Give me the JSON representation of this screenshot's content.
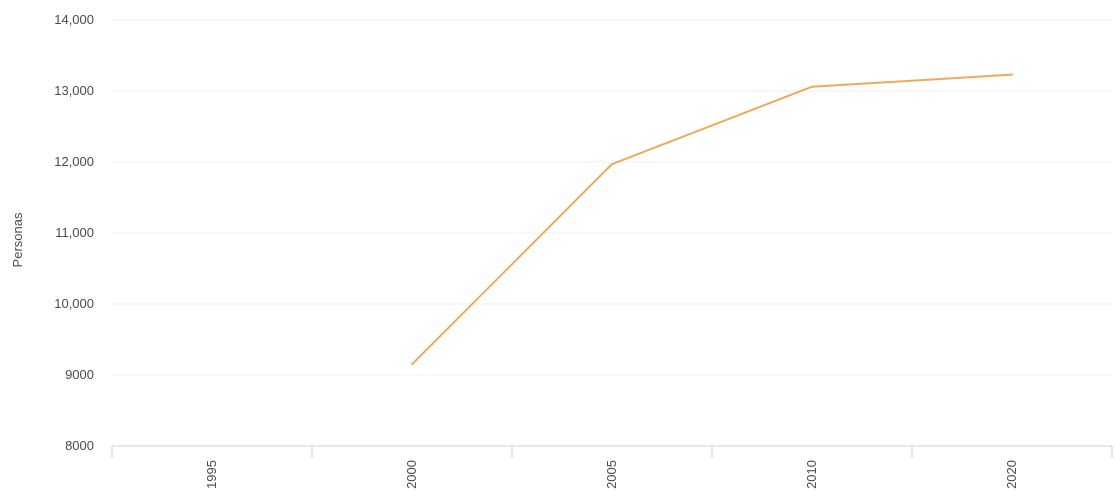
{
  "chart_data": {
    "type": "line",
    "title": "",
    "xlabel": "",
    "ylabel": "Personas",
    "categories": [
      "1995",
      "2000",
      "2005",
      "2010",
      "2020"
    ],
    "series": [
      {
        "values": [
          null,
          9150,
          11970,
          13060,
          13230
        ],
        "color": "#f0a95a"
      }
    ],
    "ylim": [
      8000,
      14000
    ],
    "yticks": [
      8000,
      9000,
      10000,
      11000,
      12000,
      13000,
      14000
    ],
    "ytick_labels": [
      "8000",
      "9000",
      "10,000",
      "11,000",
      "12,000",
      "13,000",
      "14,000"
    ],
    "grid": true,
    "legend": "none"
  }
}
